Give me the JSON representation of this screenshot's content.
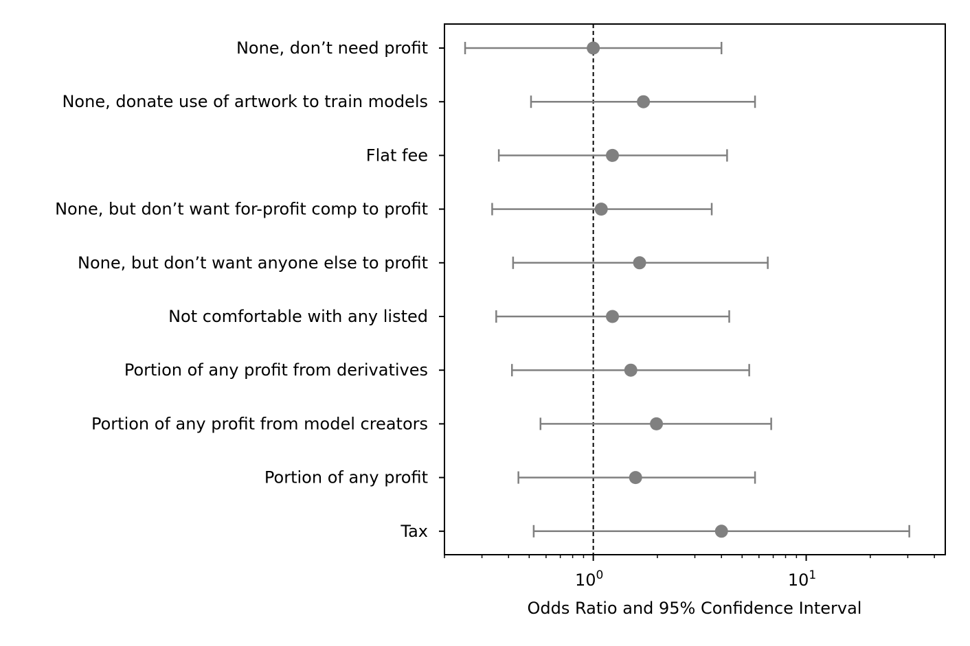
{
  "chart_data": {
    "type": "scatter",
    "subtype": "forest-plot",
    "title": "",
    "xlabel": "Odds Ratio and 95% Confidence Interval",
    "ylabel": "",
    "x_scale": "log",
    "xlim": [
      0.2,
      45
    ],
    "x_major_ticks": [
      {
        "value": 1,
        "base": "10",
        "exp": "0"
      },
      {
        "value": 10,
        "base": "10",
        "exp": "1"
      }
    ],
    "reference_line": {
      "x": 1,
      "style": "dashed"
    },
    "grid": false,
    "legend": "none",
    "marker_color": "#808080",
    "categories": [
      "None, don’t need profit",
      "None, donate use of artwork to train models",
      "Flat fee",
      "None, but don’t want for-profit comp to profit",
      "None, but don’t want anyone else to profit",
      "Not comfortable with any listed",
      "Portion of any profit from derivatives",
      "Portion of any profit from model creators",
      "Portion of any profit",
      "Tax"
    ],
    "odds_ratio": [
      1.0,
      1.72,
      1.23,
      1.09,
      1.65,
      1.23,
      1.5,
      1.98,
      1.58,
      4.0
    ],
    "ci_lower": [
      0.25,
      0.51,
      0.36,
      0.335,
      0.42,
      0.35,
      0.415,
      0.565,
      0.445,
      0.525
    ],
    "ci_upper": [
      4.0,
      5.75,
      4.25,
      3.6,
      6.6,
      4.35,
      5.4,
      6.85,
      5.75,
      30.5
    ]
  }
}
